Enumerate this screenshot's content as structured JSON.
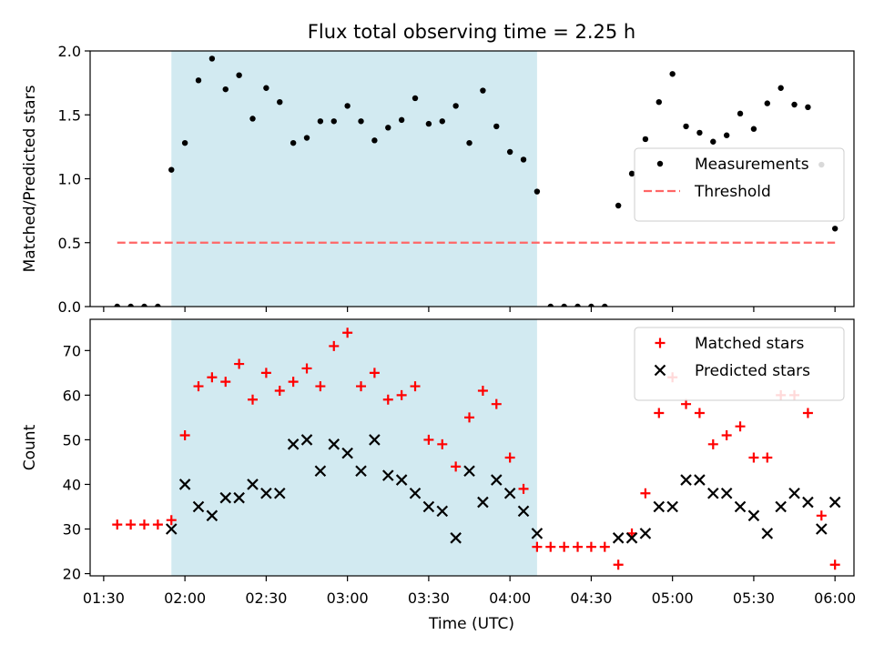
{
  "title": "Flux total observing time = 2.25 h",
  "xlabel": "Time (UTC)",
  "chart_data": [
    {
      "type": "scatter",
      "ylabel": "Matched/Predicted stars",
      "ylim": [
        0,
        2.0
      ],
      "yticks": [
        0.0,
        0.5,
        1.0,
        1.5,
        2.0
      ],
      "ytick_labels": [
        "0.0",
        "0.5",
        "1.0",
        "1.5",
        "2.0"
      ],
      "shaded_interval": [
        "01:55",
        "04:10"
      ],
      "shade_color": "#add8e6",
      "legend": "right",
      "series": [
        {
          "name": "Measurements",
          "marker": "dot",
          "color": "#000000",
          "x": [
            "01:35",
            "01:40",
            "01:45",
            "01:50",
            "01:55",
            "02:00",
            "02:05",
            "02:10",
            "02:15",
            "02:20",
            "02:25",
            "02:30",
            "02:35",
            "02:40",
            "02:45",
            "02:50",
            "02:55",
            "03:00",
            "03:05",
            "03:10",
            "03:15",
            "03:20",
            "03:25",
            "03:30",
            "03:35",
            "03:40",
            "03:45",
            "03:50",
            "03:55",
            "04:00",
            "04:05",
            "04:10",
            "04:15",
            "04:20",
            "04:25",
            "04:30",
            "04:35",
            "04:40",
            "04:45",
            "04:50",
            "04:55",
            "05:00",
            "05:05",
            "05:10",
            "05:15",
            "05:20",
            "05:25",
            "05:30",
            "05:35",
            "05:40",
            "05:45",
            "05:50",
            "05:55",
            "06:00"
          ],
          "y": [
            0.0,
            0.0,
            0.0,
            0.0,
            1.07,
            1.28,
            1.77,
            1.94,
            1.7,
            1.81,
            1.47,
            1.71,
            1.6,
            1.28,
            1.32,
            1.45,
            1.45,
            1.57,
            1.45,
            1.3,
            1.4,
            1.46,
            1.63,
            1.43,
            1.45,
            1.57,
            1.28,
            1.69,
            1.41,
            1.21,
            1.15,
            0.9,
            0.0,
            0.0,
            0.0,
            0.0,
            0.0,
            0.79,
            1.04,
            1.31,
            1.6,
            1.82,
            1.41,
            1.36,
            1.29,
            1.34,
            1.51,
            1.39,
            1.59,
            1.71,
            1.58,
            1.56,
            1.11,
            0.61
          ]
        },
        {
          "name": "Threshold",
          "line": "dashed",
          "color": "#ff6666",
          "x": [
            "01:35",
            "06:00"
          ],
          "y": [
            0.5,
            0.5
          ]
        }
      ]
    },
    {
      "type": "scatter",
      "ylabel": "Count",
      "ylim": [
        19.5,
        77
      ],
      "yticks": [
        20,
        30,
        40,
        50,
        60,
        70
      ],
      "ytick_labels": [
        "20",
        "30",
        "40",
        "50",
        "60",
        "70"
      ],
      "shaded_interval": [
        "01:55",
        "04:10"
      ],
      "shade_color": "#add8e6",
      "legend": "top-right",
      "series": [
        {
          "name": "Matched stars",
          "marker": "plus",
          "color": "#ff0000",
          "x": [
            "01:35",
            "01:40",
            "01:45",
            "01:50",
            "01:55",
            "02:00",
            "02:05",
            "02:10",
            "02:15",
            "02:20",
            "02:25",
            "02:30",
            "02:35",
            "02:40",
            "02:45",
            "02:50",
            "02:55",
            "03:00",
            "03:05",
            "03:10",
            "03:15",
            "03:20",
            "03:25",
            "03:30",
            "03:35",
            "03:40",
            "03:45",
            "03:50",
            "03:55",
            "04:00",
            "04:05",
            "04:10",
            "04:15",
            "04:20",
            "04:25",
            "04:30",
            "04:35",
            "04:40",
            "04:45",
            "04:50",
            "04:55",
            "05:00",
            "05:05",
            "05:10",
            "05:15",
            "05:20",
            "05:25",
            "05:30",
            "05:35",
            "05:40",
            "05:45",
            "05:50",
            "05:55",
            "06:00"
          ],
          "y": [
            31,
            31,
            31,
            31,
            32,
            51,
            62,
            64,
            63,
            67,
            59,
            65,
            61,
            63,
            66,
            62,
            71,
            74,
            62,
            65,
            59,
            60,
            62,
            50,
            49,
            44,
            55,
            61,
            58,
            46,
            39,
            26,
            26,
            26,
            26,
            26,
            26,
            22,
            29,
            38,
            56,
            64,
            58,
            56,
            49,
            51,
            53,
            46,
            46,
            60,
            60,
            56,
            33,
            22
          ]
        },
        {
          "name": "Predicted stars",
          "marker": "x",
          "color": "#000000",
          "x": [
            "01:55",
            "02:00",
            "02:05",
            "02:10",
            "02:15",
            "02:20",
            "02:25",
            "02:30",
            "02:35",
            "02:40",
            "02:45",
            "02:50",
            "02:55",
            "03:00",
            "03:05",
            "03:10",
            "03:15",
            "03:20",
            "03:25",
            "03:30",
            "03:35",
            "03:40",
            "03:45",
            "03:50",
            "03:55",
            "04:00",
            "04:05",
            "04:10",
            "04:40",
            "04:45",
            "04:50",
            "04:55",
            "05:00",
            "05:05",
            "05:10",
            "05:15",
            "05:20",
            "05:25",
            "05:30",
            "05:35",
            "05:40",
            "05:45",
            "05:50",
            "05:55",
            "06:00"
          ],
          "y": [
            30,
            40,
            35,
            33,
            37,
            37,
            40,
            38,
            38,
            49,
            50,
            43,
            49,
            47,
            43,
            50,
            42,
            41,
            38,
            35,
            34,
            28,
            43,
            36,
            41,
            38,
            34,
            29,
            28,
            28,
            29,
            35,
            35,
            41,
            41,
            38,
            38,
            35,
            33,
            29,
            35,
            38,
            36,
            30,
            36
          ]
        }
      ]
    }
  ],
  "xticks": [
    "01:30",
    "02:00",
    "02:30",
    "03:00",
    "03:30",
    "04:00",
    "04:30",
    "05:00",
    "05:30",
    "06:00"
  ],
  "xlim": [
    "01:25",
    "06:07"
  ]
}
